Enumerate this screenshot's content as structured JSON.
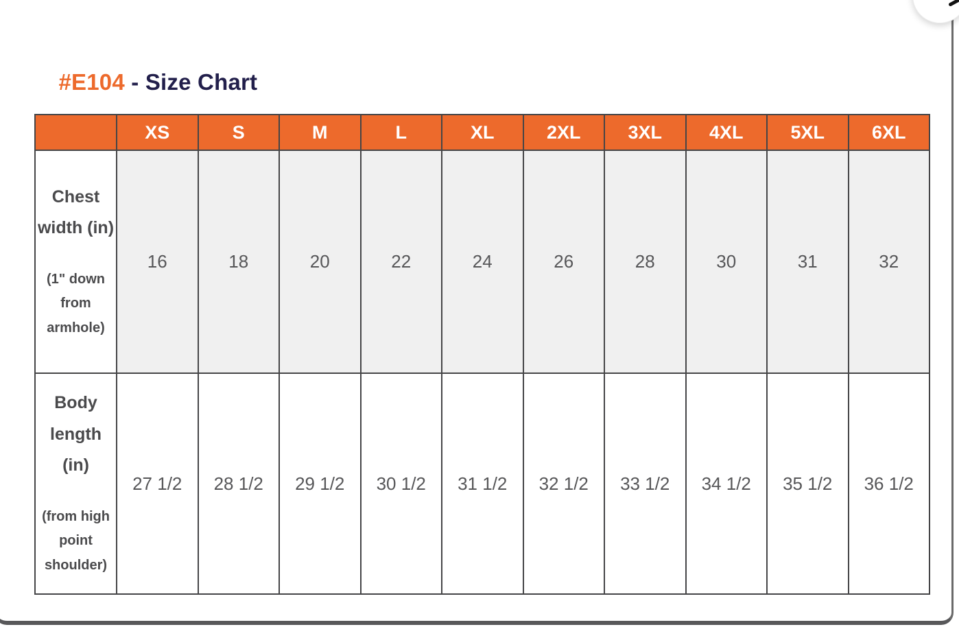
{
  "colors": {
    "accent_orange": "#ED6A2C",
    "title_navy": "#221F4B",
    "table_border": "#454547",
    "shaded_row_bg": "#F0F0F0",
    "value_text": "#565658",
    "label_text": "#4A4A4C",
    "header_text": "#FFFFFF",
    "card_border": "#58585A"
  },
  "modal": {
    "title_code": "#E104",
    "title_rest": " - Size Chart"
  },
  "chart_data": {
    "type": "table",
    "title": "#E104 - Size Chart",
    "columns": [
      "",
      "XS",
      "S",
      "M",
      "L",
      "XL",
      "2XL",
      "3XL",
      "4XL",
      "5XL",
      "6XL"
    ],
    "rows": [
      [
        "Chest width (in) (1\" down from armhole)",
        "16",
        "18",
        "20",
        "22",
        "24",
        "26",
        "28",
        "30",
        "31",
        "32"
      ],
      [
        "Body length (in) (from high point shoulder)",
        "27 1/2",
        "28 1/2",
        "29 1/2",
        "30 1/2",
        "31 1/2",
        "32 1/2",
        "33 1/2",
        "34 1/2",
        "35 1/2",
        "36 1/2"
      ]
    ]
  },
  "size_chart": {
    "sizes": [
      "XS",
      "S",
      "M",
      "L",
      "XL",
      "2XL",
      "3XL",
      "4XL",
      "5XL",
      "6XL"
    ],
    "rows": [
      {
        "label_main": "Chest width (in)",
        "label_note": "(1\" down from armhole)",
        "values": [
          "16",
          "18",
          "20",
          "22",
          "24",
          "26",
          "28",
          "30",
          "31",
          "32"
        ]
      },
      {
        "label_main": "Body length (in)",
        "label_note": "(from high point shoulder)",
        "values": [
          "27 1/2",
          "28 1/2",
          "29 1/2",
          "30 1/2",
          "31 1/2",
          "32 1/2",
          "33 1/2",
          "34 1/2",
          "35 1/2",
          "36 1/2"
        ]
      }
    ]
  }
}
